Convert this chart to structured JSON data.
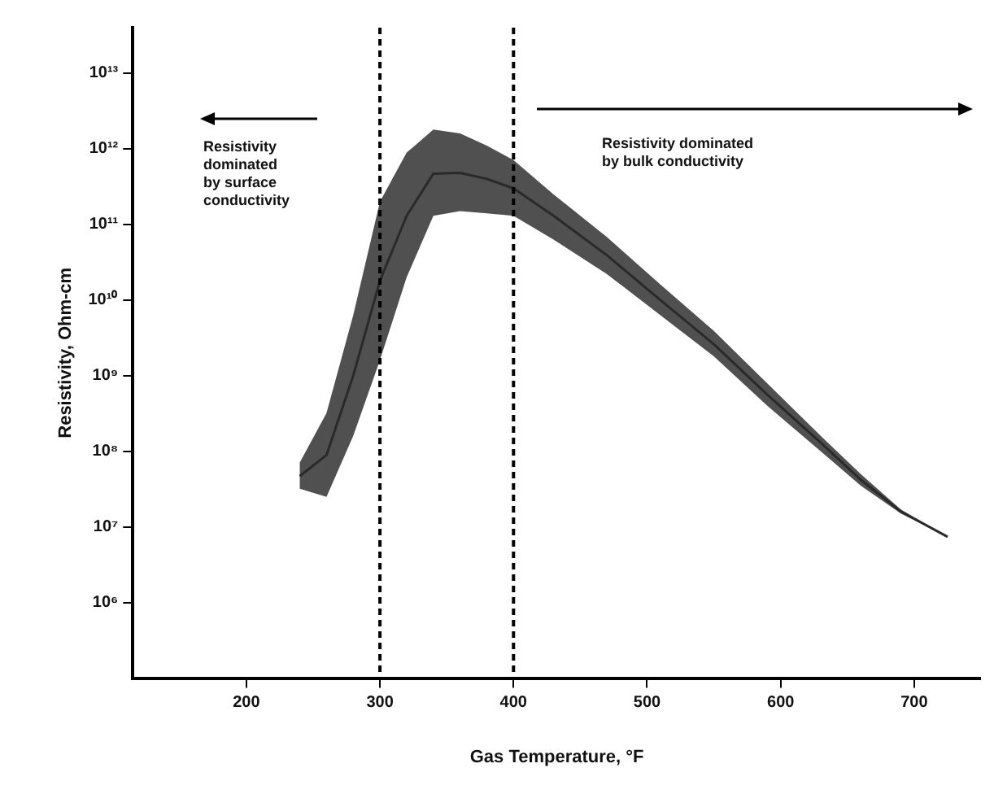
{
  "chart_data": {
    "type": "line",
    "xlabel": "Gas Temperature, °F",
    "ylabel": "Resistivity, Ohm-cm",
    "x": [
      240,
      260,
      280,
      300,
      320,
      340,
      360,
      380,
      400,
      430,
      470,
      510,
      550,
      590,
      630,
      660,
      690,
      725
    ],
    "series": [
      {
        "color": "#2a2a2a",
        "values": [
          47000000.0,
          89000000.0,
          1000000000.0,
          18000000000.0,
          130000000000.0,
          470000000000.0,
          480000000000.0,
          400000000000.0,
          300000000000.0,
          130000000000.0,
          39000000000.0,
          10000000000.0,
          2600000000.0,
          560000000.0,
          130000000.0,
          42000000.0,
          16000000.0,
          7400000.0
        ],
        "lower": [
          32000000.0,
          25000000.0,
          160000000.0,
          1600000000.0,
          20000000000.0,
          130000000000.0,
          150000000000.0,
          140000000000.0,
          130000000000.0,
          63000000000.0,
          22000000000.0,
          6300000000.0,
          1800000000.0,
          400000000.0,
          100000000.0,
          35000000.0,
          15000000.0,
          7400000.0
        ],
        "upper": [
          71000000.0,
          320000000.0,
          6300000000.0,
          200000000000.0,
          890000000000.0,
          1800000000000.0,
          1600000000000.0,
          1100000000000.0,
          710000000000.0,
          250000000000.0,
          68000000000.0,
          16000000000.0,
          3900000000.0,
          790000000.0,
          160000000.0,
          50000000.0,
          17000000.0,
          7400000.0
        ]
      }
    ],
    "xlim": [
      115,
      750
    ],
    "xticks": [
      200,
      300,
      400,
      500,
      600,
      700
    ],
    "log": "y",
    "ylim": [
      100000.0,
      40000000000000.0
    ],
    "yticks": [
      {
        "value": 1000000.0,
        "label": "10⁶"
      },
      {
        "value": 10000000.0,
        "label": "10⁷"
      },
      {
        "value": 100000000.0,
        "label": "10⁸"
      },
      {
        "value": 1000000000.0,
        "label": "10⁹"
      },
      {
        "value": 10000000000.0,
        "label": "10¹⁰"
      },
      {
        "value": 100000000000.0,
        "label": "10¹¹"
      },
      {
        "value": 1000000000000.0,
        "label": "10¹²"
      },
      {
        "value": 10000000000000.0,
        "label": "10¹³"
      }
    ],
    "ref_lines": [
      {
        "axis": "x",
        "value": 300,
        "line_style": "dashed",
        "color": "#000000"
      },
      {
        "axis": "x",
        "value": 400,
        "line_style": "dashed",
        "color": "#000000"
      }
    ],
    "annotations": [
      "Resistivity\ndominated\nby surface\nconductivity",
      "Resistivity dominated\nby bulk conductivity"
    ],
    "grid": false,
    "legend": false,
    "marker": "none",
    "line_style": "solid"
  }
}
